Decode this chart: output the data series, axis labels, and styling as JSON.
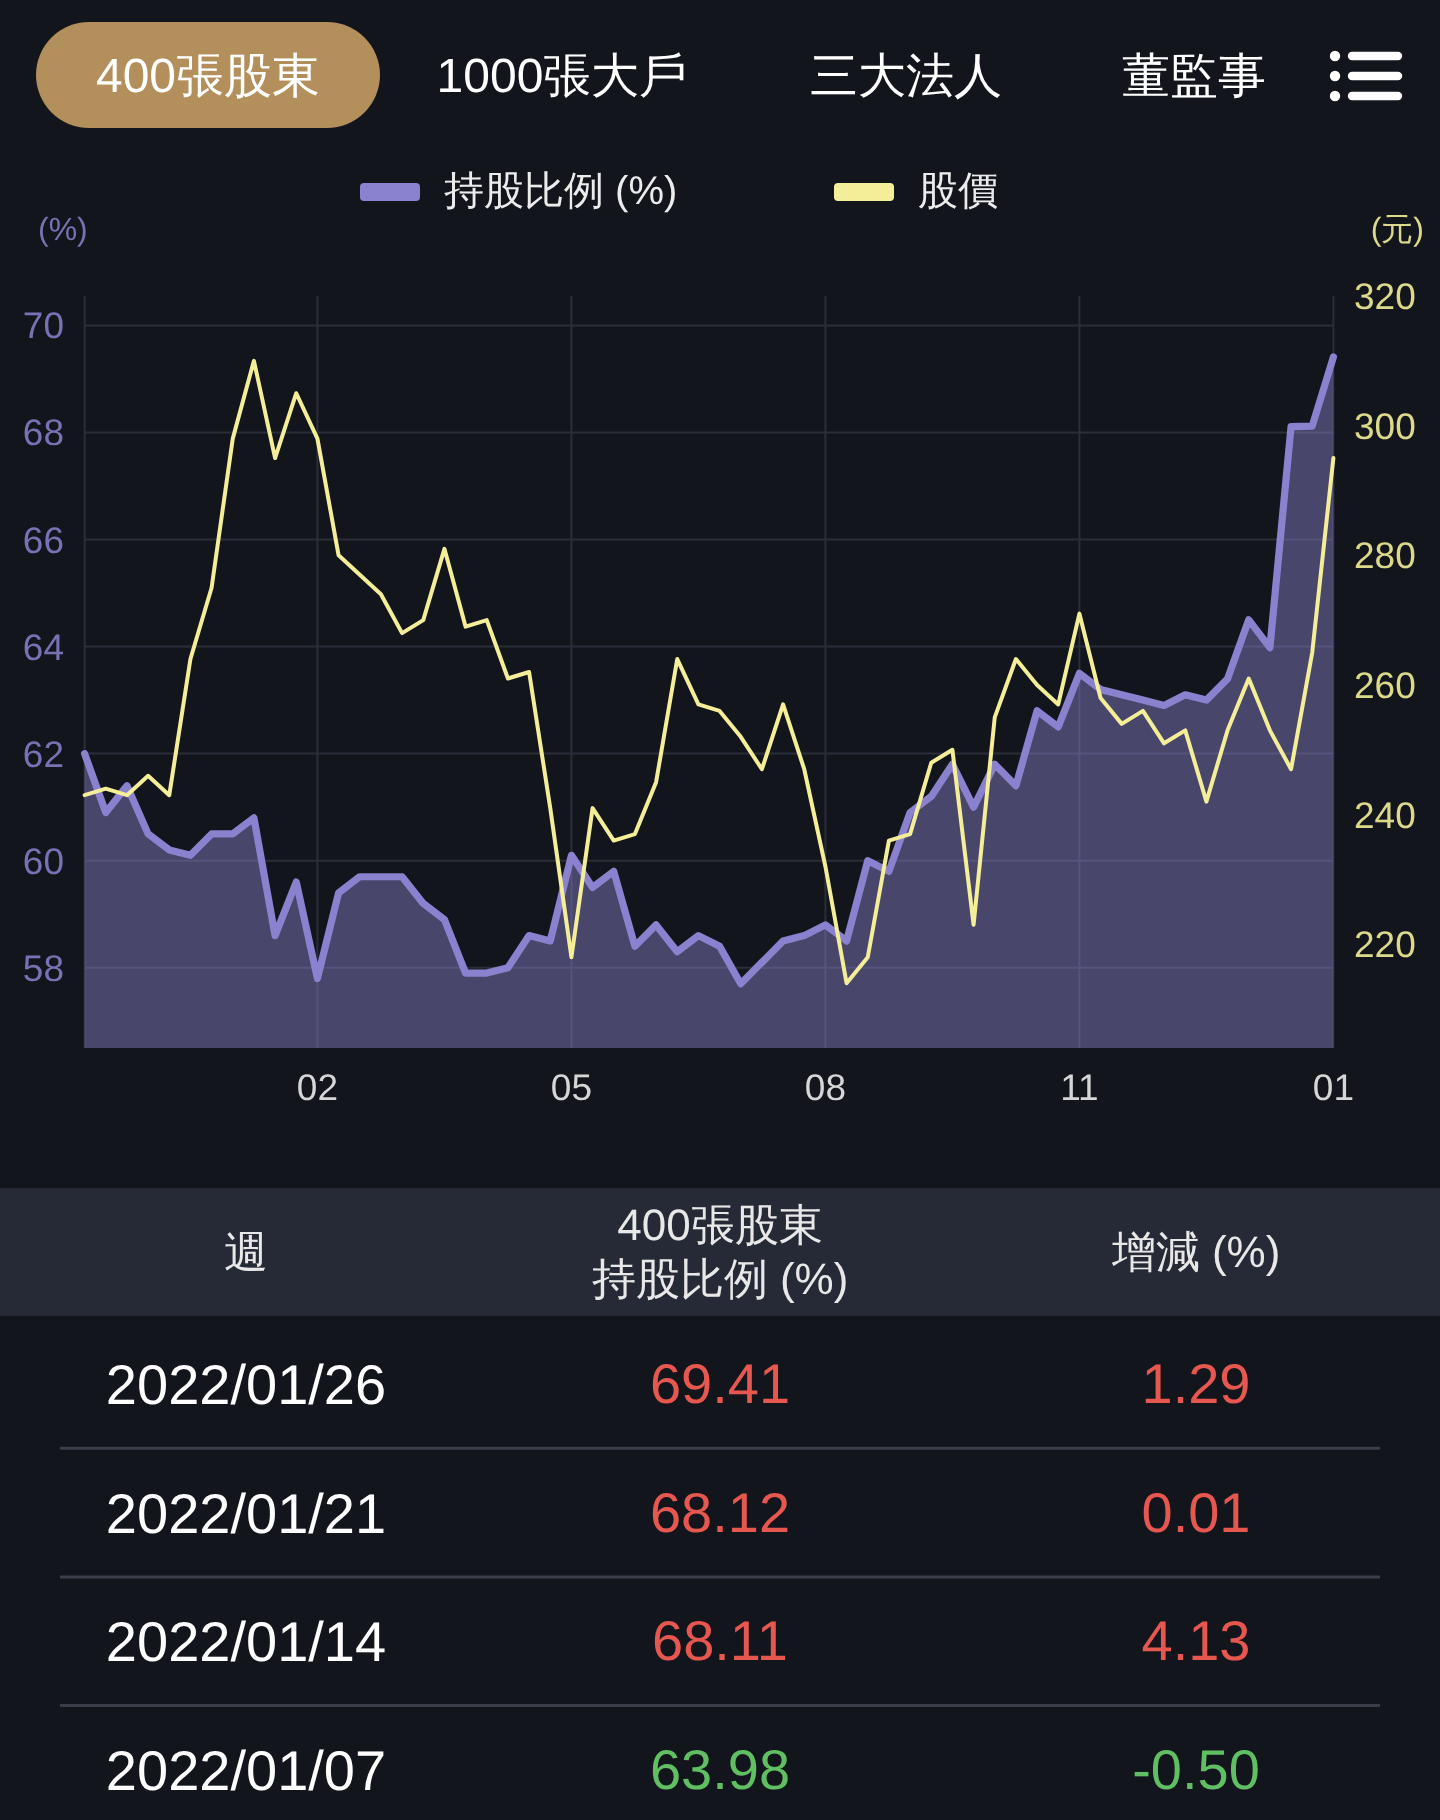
{
  "chart_data": [
    {
      "type": "line",
      "title": "400張股東",
      "annotations": [
        "1000張大戶",
        "三大法人",
        "董監事"
      ],
      "ylabel": "(%)",
      "y2label": "(元)",
      "categories": [
        null,
        null,
        null,
        null,
        null,
        null,
        null,
        null,
        null,
        null,
        null,
        "02",
        null,
        null,
        null,
        null,
        null,
        null,
        null,
        null,
        null,
        null,
        null,
        "05",
        null,
        null,
        null,
        null,
        null,
        null,
        null,
        null,
        null,
        null,
        null,
        "08",
        null,
        null,
        null,
        null,
        null,
        null,
        null,
        null,
        null,
        null,
        null,
        "11",
        null,
        null,
        null,
        null,
        null,
        null,
        null,
        null,
        null,
        null,
        null,
        "01"
      ],
      "series": [
        {
          "name": "持股比例 (%)",
          "type": "area",
          "color": "#8b82cf",
          "values": [
            62.0,
            60.9,
            61.4,
            60.5,
            60.2,
            60.1,
            60.5,
            60.5,
            60.8,
            58.6,
            59.6,
            57.8,
            59.4,
            59.7,
            59.7,
            59.7,
            59.2,
            58.9,
            57.9,
            57.9,
            58.0,
            58.6,
            58.5,
            60.1,
            59.5,
            59.8,
            58.4,
            58.8,
            58.3,
            58.6,
            58.4,
            57.7,
            58.1,
            58.5,
            58.6,
            58.8,
            58.5,
            60.0,
            59.8,
            60.9,
            61.2,
            61.8,
            61.0,
            61.8,
            61.4,
            62.8,
            62.5,
            63.5,
            63.2,
            63.1,
            63.0,
            62.9,
            63.1,
            63.0,
            63.4,
            64.5,
            63.98,
            68.11,
            68.12,
            69.41
          ]
        },
        {
          "name": "股價",
          "type": "line",
          "color": "#f4ee98",
          "axis": "y2",
          "values": [
            243,
            244,
            243,
            246,
            243,
            264,
            275,
            298,
            310,
            295,
            305,
            298,
            280,
            277,
            274,
            268,
            270,
            281,
            269,
            270,
            261,
            262,
            241,
            218,
            241,
            236,
            237,
            245,
            264,
            257,
            256,
            252,
            247,
            257,
            247,
            232,
            214,
            218,
            236,
            237,
            248,
            250,
            223,
            255,
            264,
            260,
            257,
            271,
            258,
            254,
            256,
            251,
            253,
            242,
            253,
            261,
            253,
            247,
            265,
            295
          ]
        }
      ],
      "ylim": [
        56.5,
        70.55
      ],
      "yticks": [
        58,
        60,
        62,
        64,
        66,
        68,
        70
      ],
      "y2lim": [
        204,
        320
      ],
      "y2ticks": [
        220,
        240,
        260,
        280,
        300,
        320
      ],
      "grid": true,
      "legend": "top"
    },
    {
      "type": "other",
      "xlabel": "週",
      "categories": [
        "2022/01/26",
        "2022/01/21",
        "2022/01/14",
        "2022/01/07"
      ],
      "series": [
        {
          "name": "400張股東持股比例 (%)",
          "values": [
            69.41,
            68.12,
            68.11,
            63.98
          ],
          "value_labels": [
            "69.41",
            "68.12",
            "68.11",
            "63.98"
          ],
          "colors": [
            "#e5574f",
            "#e5574f",
            "#e5574f",
            "#5fbf62"
          ]
        },
        {
          "name": "增減 (%)",
          "values": [
            1.29,
            0.01,
            4.13,
            -0.5
          ],
          "value_labels": [
            "1.29",
            "0.01",
            "4.13",
            "-0.50"
          ],
          "colors": [
            "#e5574f",
            "#e5574f",
            "#e5574f",
            "#5fbf62"
          ]
        }
      ]
    }
  ]
}
